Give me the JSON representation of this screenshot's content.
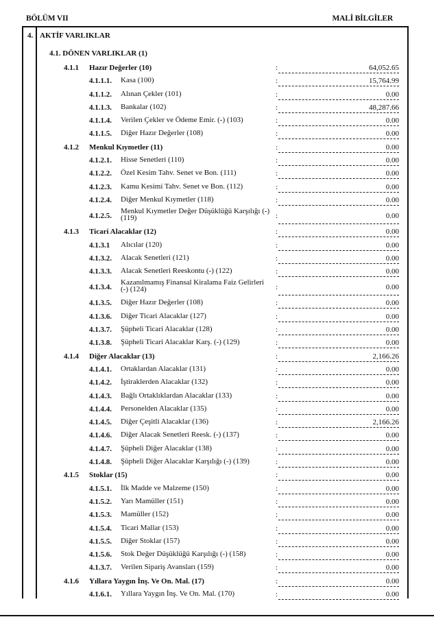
{
  "header": {
    "left": "BÖLÜM VII",
    "right": "MALİ BİLGİLER"
  },
  "section": {
    "number": "4.",
    "title": "AKTİF VARLIKLAR",
    "subtitle": "4.1. DÖNEN VARLIKLAR (1)"
  },
  "rows": [
    {
      "level": 1,
      "code": "4.1.1",
      "label": "Hazır Değerler (10)",
      "value": "64,052.65"
    },
    {
      "level": 2,
      "code": "4.1.1.1.",
      "label": "Kasa (100)",
      "value": "15,764.99"
    },
    {
      "level": 2,
      "code": "4.1.1.2.",
      "label": "Alınan Çekler (101)",
      "value": "0.00"
    },
    {
      "level": 2,
      "code": "4.1.1.3.",
      "label": "Bankalar (102)",
      "value": "48,287.66"
    },
    {
      "level": 2,
      "code": "4.1.1.4.",
      "label": "Verilen Çekler ve Ödeme Emir. (-) (103)",
      "value": "0.00"
    },
    {
      "level": 2,
      "code": "4.1.1.5.",
      "label": "Diğer Hazır Değerler (108)",
      "value": "0.00"
    },
    {
      "level": 1,
      "code": "4.1.2",
      "label": "Menkul Kıymetler (11)",
      "value": "0.00"
    },
    {
      "level": 2,
      "code": "4.1.2.1.",
      "label": "Hisse Senetleri (110)",
      "value": "0.00"
    },
    {
      "level": 2,
      "code": "4.1.2.2.",
      "label": "Özel Kesim Tahv. Senet ve Bon. (111)",
      "value": "0.00"
    },
    {
      "level": 2,
      "code": "4.1.2.3.",
      "label": "Kamu Kesimi Tahv. Senet ve Bon. (112)",
      "value": "0.00"
    },
    {
      "level": 2,
      "code": "4.1.2.4.",
      "label": "Diğer Menkul Kıymetler (118)",
      "value": "0.00"
    },
    {
      "level": 2,
      "code": "4.1.2.5.",
      "label": " Menkul Kıymetler Değer Düşüklüğü Karşılığı (-) (119)",
      "value": "0.00",
      "tall": true
    },
    {
      "level": 1,
      "code": "4.1.3",
      "label": "Ticari Alacaklar (12)",
      "value": "0.00"
    },
    {
      "level": 2,
      "code": "4.1.3.1",
      "label": "Alıcılar (120)",
      "value": "0.00"
    },
    {
      "level": 2,
      "code": "4.1.3.2.",
      "label": "Alacak Senetleri (121)",
      "value": "0.00"
    },
    {
      "level": 2,
      "code": "4.1.3.3.",
      "label": "Alacak Senetleri Reeskontu (-) (122)",
      "value": "0.00"
    },
    {
      "level": 2,
      "code": "4.1.3.4.",
      "label": "Kazanılmamış Finansal Kiralama Faiz Gelirleri (-) (124)",
      "value": "0.00",
      "tall": true
    },
    {
      "level": 2,
      "code": "4.1.3.5.",
      "label": "Diğer Hazır Değerler (108)",
      "value": "0.00"
    },
    {
      "level": 2,
      "code": "4.1.3.6.",
      "label": "Diğer Ticari Alacaklar (127)",
      "value": "0.00"
    },
    {
      "level": 2,
      "code": "4.1.3.7.",
      "label": "Şüpheli Ticari Alacaklar (128)",
      "value": "0.00"
    },
    {
      "level": 2,
      "code": "4.1.3.8.",
      "label": "Şüpheli Ticari Alacaklar Karş. (-) (129)",
      "value": "0.00"
    },
    {
      "level": 1,
      "code": "4.1.4",
      "label": "Diğer Alacaklar (13)",
      "value": "2,166.26"
    },
    {
      "level": 2,
      "code": "4.1.4.1.",
      "label": "Ortaklardan Alacaklar (131)",
      "value": "0.00"
    },
    {
      "level": 2,
      "code": "4.1.4.2.",
      "label": "İştiraklerden Alacaklar (132)",
      "value": "0.00"
    },
    {
      "level": 2,
      "code": "4.1.4.3.",
      "label": "Bağlı Ortaklıklardan Alacaklar (133)",
      "value": "0.00"
    },
    {
      "level": 2,
      "code": "4.1.4.4.",
      "label": "Personelden Alacaklar (135)",
      "value": "0.00"
    },
    {
      "level": 2,
      "code": "4.1.4.5.",
      "label": "Diğer Çeşitli Alacaklar (136)",
      "value": "2,166.26"
    },
    {
      "level": 2,
      "code": "4.1.4.6.",
      "label": "Diğer Alacak Senetleri Reesk. (-) (137)",
      "value": "0.00"
    },
    {
      "level": 2,
      "code": "4.1.4.7.",
      "label": "Şüpheli Diğer Alacaklar (138)",
      "value": "0.00"
    },
    {
      "level": 2,
      "code": "4.1.4.8.",
      "label": "Şüpheli Diğer Alacaklar Karşılığı (-) (139)",
      "value": "0.00"
    },
    {
      "level": 1,
      "code": "4.1.5",
      "label": "Stoklar (15)",
      "value": "0.00"
    },
    {
      "level": 2,
      "code": "4.1.5.1.",
      "label": "İlk Madde ve Malzeme (150)",
      "value": "0.00"
    },
    {
      "level": 2,
      "code": "4.1.5.2.",
      "label": "Yarı Mamüller (151)",
      "value": "0.00"
    },
    {
      "level": 2,
      "code": "4.1.5.3.",
      "label": "Mamüller (152)",
      "value": "0.00"
    },
    {
      "level": 2,
      "code": "4.1.5.4.",
      "label": "Ticari Mallar (153)",
      "value": "0.00"
    },
    {
      "level": 2,
      "code": "4.1.5.5.",
      "label": "Diğer Stoklar (157)",
      "value": "0.00"
    },
    {
      "level": 2,
      "code": "4.1.5.6.",
      "label": "Stok Değer Düşüklüğü Karşılığı (-) (158)",
      "value": "0.00"
    },
    {
      "level": 2,
      "code": "4.1.3.7.",
      "label": "Verilen Sipariş Avansları (159)",
      "value": "0.00"
    },
    {
      "level": 1,
      "code": "4.1.6",
      "label": "Yıllara Yaygın İnş. Ve On. Mal. (17)",
      "value": "0.00"
    },
    {
      "level": 2,
      "code": "4.1.6.1.",
      "label": "Yıllara Yaygın İnş. Ve On. Mal. (170)",
      "value": "0.00"
    }
  ],
  "colon": ":"
}
